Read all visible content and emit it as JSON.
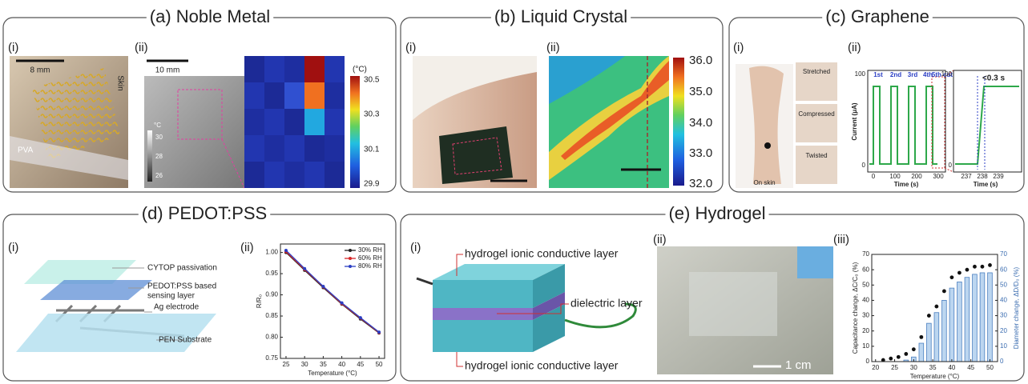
{
  "panels": {
    "a": {
      "title": "(a) Noble Metal",
      "i": {
        "label": "(i)",
        "scale_bar": "8 mm",
        "texts": [
          "Skin",
          "PVA"
        ]
      },
      "ii": {
        "label": "(ii)",
        "scale_bar": "10 mm",
        "gray_unit": "°C",
        "gray_ticks": [
          "30",
          "28",
          "26"
        ],
        "unit": "(°C)",
        "ticks": [
          "30.5",
          "30.3",
          "30.1",
          "29.9"
        ]
      }
    },
    "b": {
      "title": "(b) Liquid Crystal",
      "i": {
        "label": "(i)"
      },
      "ii": {
        "label": "(ii)",
        "ticks": [
          "36.0",
          "35.0",
          "34.0",
          "33.0",
          "32.0"
        ]
      }
    },
    "c": {
      "title": "(c) Graphene",
      "i": {
        "label": "(i)",
        "captions": [
          "On skin",
          "Stretched",
          "Compressed",
          "Twisted"
        ]
      },
      "ii": {
        "label": "(ii)",
        "y_label": "Current (μA)",
        "x_label": "Time (s)",
        "yticks": [
          "100",
          "0"
        ],
        "xticks": [
          "0",
          "100",
          "200",
          "300"
        ],
        "events": [
          "1st",
          "2nd",
          "3rd",
          "4th",
          "5th cut"
        ],
        "inset": {
          "note": "<0.3 s",
          "x_label": "Time (s)",
          "xticks": [
            "237",
            "238",
            "239"
          ],
          "yticks": [
            "100",
            "0"
          ]
        }
      }
    },
    "d": {
      "title": "(d) PEDOT:PSS",
      "i": {
        "label": "(i)",
        "layers": [
          "CYTOP passivation",
          "PEDOT:PSS based",
          "sensing layer",
          "Ag electrode",
          "PEN Substrate"
        ]
      },
      "ii": {
        "label": "(ii)",
        "type": "line",
        "x_label": "Temperature (°C)",
        "y_label": "R/R₀",
        "x": [
          25,
          30,
          35,
          40,
          45,
          50
        ],
        "series": [
          {
            "name": "30% RH",
            "color": "#222222",
            "values": [
              1.0,
              0.958,
              0.917,
              0.878,
              0.843,
              0.81
            ]
          },
          {
            "name": "60% RH",
            "color": "#d62728",
            "values": [
              1.002,
              0.96,
              0.919,
              0.879,
              0.845,
              0.811
            ]
          },
          {
            "name": "80% RH",
            "color": "#2b3fc4",
            "values": [
              1.005,
              0.962,
              0.92,
              0.881,
              0.846,
              0.812
            ]
          }
        ],
        "xlim": [
          23.5,
          51.5
        ],
        "ylim": [
          0.75,
          1.02
        ],
        "xticks": [
          25,
          30,
          35,
          40,
          45,
          50
        ],
        "yticks": [
          {
            "value": 0.75,
            "label": "0.75"
          },
          {
            "value": 0.8,
            "label": "0.80"
          },
          {
            "value": 0.85,
            "label": "0.85"
          },
          {
            "value": 0.9,
            "label": "0.90"
          },
          {
            "value": 0.95,
            "label": "0.95"
          },
          {
            "value": 1.0,
            "label": "1.00"
          }
        ]
      }
    },
    "e": {
      "title": "(e) Hydrogel",
      "i": {
        "label": "(i)",
        "layers": [
          "hydrogel ionic conductive layer",
          "dielectric layer",
          "hydrogel ionic conductive layer"
        ]
      },
      "ii": {
        "label": "(ii)",
        "scale_bar": "1 cm"
      },
      "iii": {
        "label": "(iii)",
        "type": "bar+scatter",
        "x_label": "Temperature (°C)",
        "y_label": "Capacitance change, ΔC/C₀ (%)",
        "y2_label": "Diameter change, ΔD/D₀ (%)",
        "x": [
          22,
          24,
          26,
          28,
          30,
          32,
          34,
          36,
          38,
          40,
          42,
          44,
          46,
          48,
          50
        ],
        "series": [
          {
            "color": "#111111",
            "values": [
              1,
              2,
              3,
              5,
              8,
              16,
              30,
              36,
              46,
              55,
              58,
              60,
              62,
              62,
              63
            ]
          },
          {
            "color": "#bcd6f0",
            "axis": "y2",
            "values": [
              0,
              0,
              0,
              1,
              3,
              12,
              25,
              32,
              40,
              48,
              52,
              55,
              57,
              58,
              58
            ]
          }
        ],
        "xlim": [
          19,
          52
        ],
        "ylim": [
          0,
          70
        ],
        "y2lim": [
          0,
          70
        ],
        "xticks": [
          20,
          25,
          30,
          35,
          40,
          45,
          50
        ],
        "yticks": [
          0,
          10,
          20,
          30,
          40,
          50,
          60,
          70
        ],
        "y2ticks": [
          0,
          10,
          20,
          30,
          40,
          50,
          60,
          70
        ]
      }
    }
  }
}
